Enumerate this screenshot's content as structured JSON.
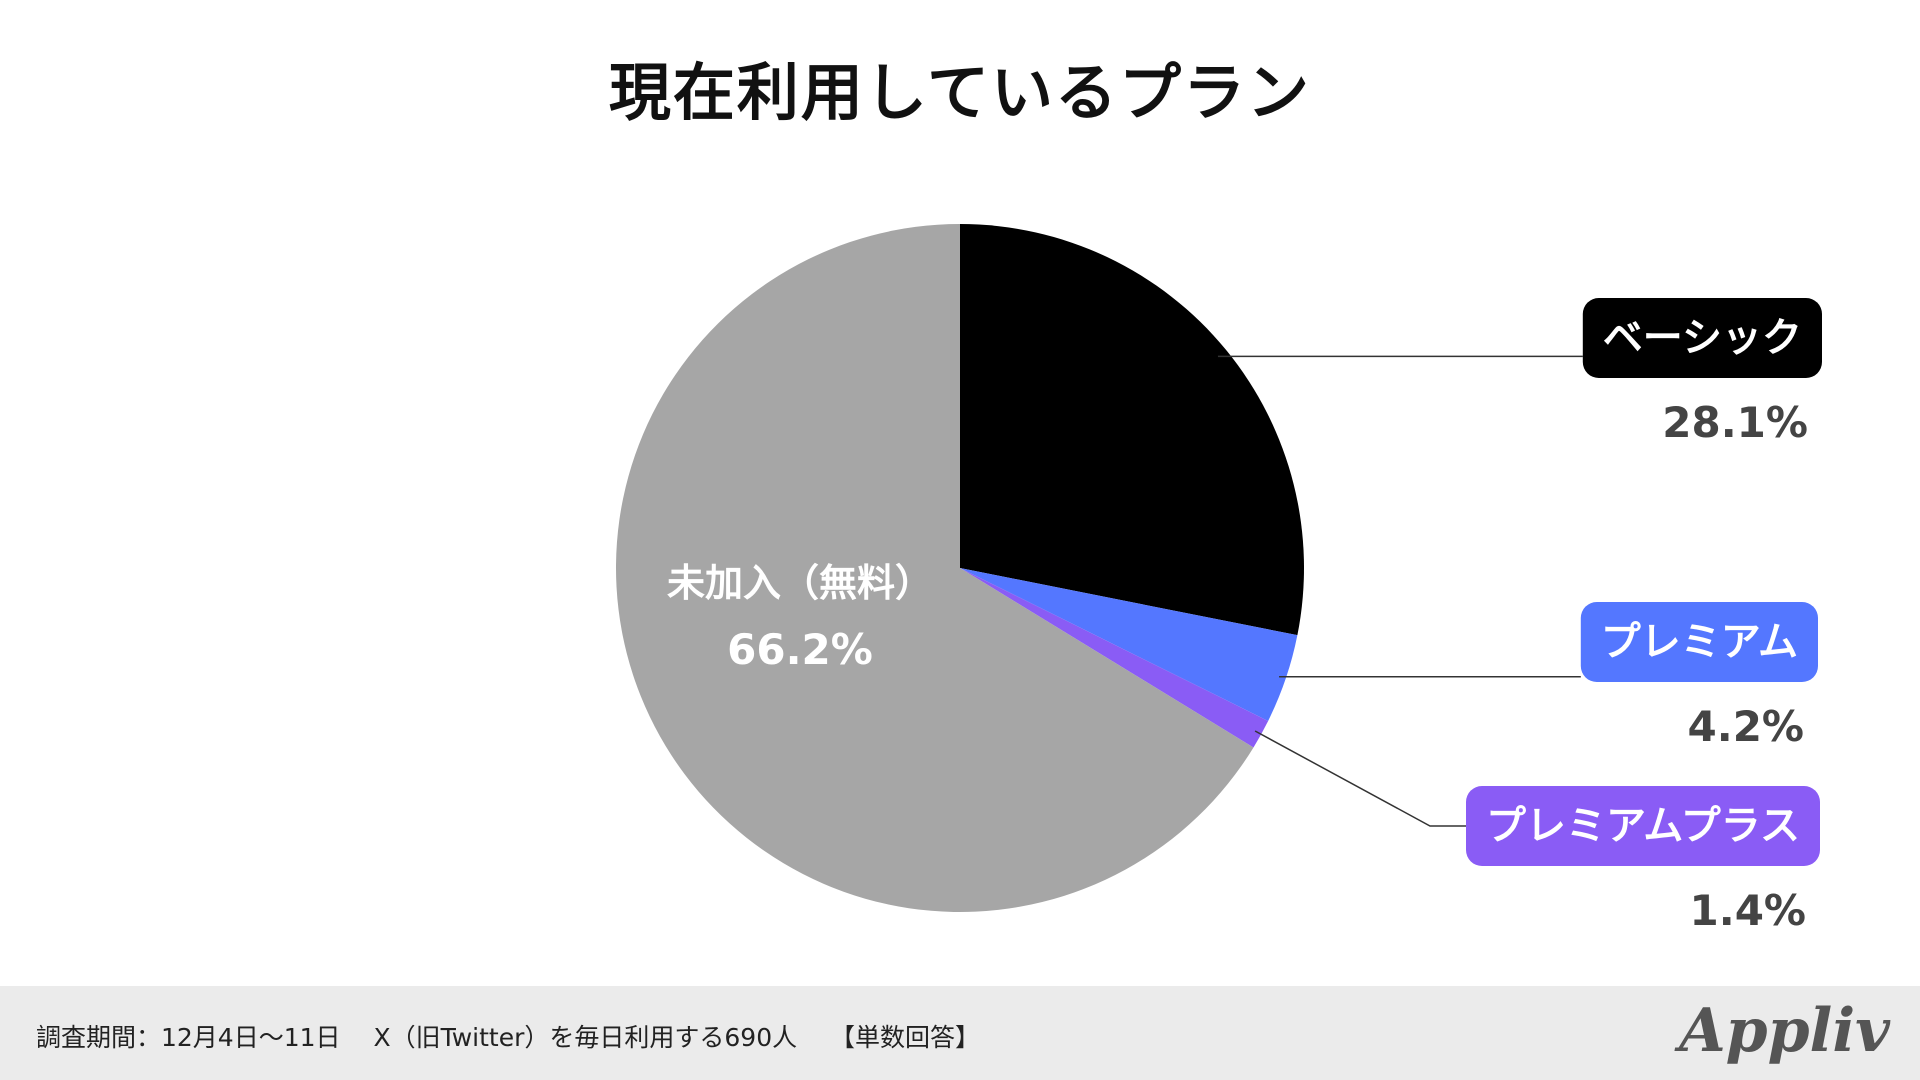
{
  "chart_data": {
    "type": "pie",
    "title": "現在利用しているプラン",
    "slices": [
      {
        "label": "ベーシック",
        "value": 28.1,
        "value_label": "28.1%",
        "color": "#000000"
      },
      {
        "label": "プレミアム",
        "value": 4.2,
        "value_label": "4.2%",
        "color": "#5477ff"
      },
      {
        "label": "プレミアムプラス",
        "value": 1.4,
        "value_label": "1.4%",
        "color": "#8a5cf5"
      },
      {
        "label": "未加入（無料）",
        "value": 66.2,
        "value_label": "66.2%",
        "color": "#a6a6a6"
      }
    ],
    "start_angle": "12 o'clock",
    "direction": "clockwise"
  },
  "footer": {
    "note": "調査期間：12月4日〜11日　 X（旧Twitter）を毎日利用する690人　 【単数回答】",
    "logo": "Appliv"
  },
  "colors": {
    "value_text": "#444444",
    "leader_line": "#333333",
    "footer_background": "#ebebeb"
  }
}
